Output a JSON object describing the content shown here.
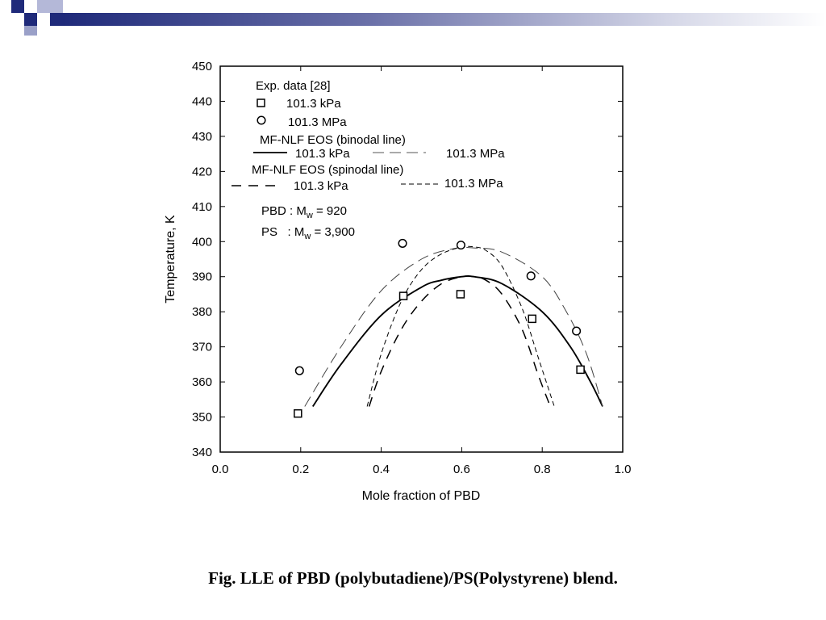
{
  "slide": {
    "caption": "Fig. LLE of PBD (polybutadiene)/PS(Polystyrene) blend.",
    "accent_color": "#1f2a7a"
  },
  "chart_data": {
    "type": "scatter",
    "xlabel": "Mole fraction of PBD",
    "ylabel": "Temperature, K",
    "xlim": [
      0.0,
      1.0
    ],
    "ylim": [
      340,
      450
    ],
    "x_ticks": [
      "0.0",
      "0.2",
      "0.4",
      "0.6",
      "0.8",
      "1.0"
    ],
    "y_ticks": [
      "340",
      "350",
      "360",
      "370",
      "380",
      "390",
      "400",
      "410",
      "420",
      "430",
      "440",
      "450"
    ],
    "grid": false,
    "legend": {
      "exp_title": "Exp. data [28]",
      "exp_kpa": "101.3 kPa",
      "exp_mpa": "101.3 MPa",
      "binodal_title": "MF-NLF EOS (binodal line)",
      "binodal_kpa": "101.3 kPa",
      "binodal_mpa": "101.3 MPa",
      "spinodal_title": "MF-NLF EOS (spinodal line)",
      "spinodal_kpa": "101.3 kPa",
      "spinodal_mpa": "101.3 MPa"
    },
    "annotations": {
      "pbd_prefix": "PBD : M",
      "pbd_sub": "w",
      "pbd_value": " = 920",
      "ps_prefix": "PS   : M",
      "ps_sub": "w",
      "ps_value": " = 3,900"
    },
    "series": [
      {
        "name": "101.3 kPa",
        "kind": "points",
        "marker": "square",
        "x": [
          0.193,
          0.455,
          0.597,
          0.775,
          0.895
        ],
        "y": [
          351,
          384.5,
          385,
          378,
          363.5
        ]
      },
      {
        "name": "101.3 MPa",
        "kind": "points",
        "marker": "circle",
        "x": [
          0.197,
          0.453,
          0.598,
          0.772,
          0.885
        ],
        "y": [
          363.2,
          399.5,
          399,
          390.2,
          374.5
        ]
      },
      {
        "name": "101.3 kPa",
        "kind": "line",
        "style": "binodal-solid",
        "x": [
          0.23,
          0.3,
          0.4,
          0.5,
          0.55,
          0.6,
          0.63,
          0.7,
          0.8,
          0.87,
          0.92,
          0.95
        ],
        "y": [
          353,
          365,
          379,
          387,
          389,
          390,
          390,
          388,
          380,
          370,
          360,
          353
        ]
      },
      {
        "name": "101.3 MPa",
        "kind": "line",
        "style": "binodal-long-dash",
        "x": [
          0.21,
          0.3,
          0.4,
          0.5,
          0.58,
          0.63,
          0.7,
          0.8,
          0.86,
          0.91,
          0.95
        ],
        "y": [
          353,
          370,
          386,
          395,
          398,
          398.2,
          397,
          390,
          380,
          368,
          353
        ]
      },
      {
        "name": "101.3 kPa",
        "kind": "line",
        "style": "spinodal-dash",
        "x": [
          0.37,
          0.4,
          0.45,
          0.5,
          0.55,
          0.6,
          0.63,
          0.66,
          0.7,
          0.75,
          0.79,
          0.82
        ],
        "y": [
          353,
          363,
          375,
          383,
          388,
          390,
          390,
          389,
          385,
          375,
          362,
          353
        ]
      },
      {
        "name": "101.3 MPa",
        "kind": "line",
        "style": "spinodal-short-dash",
        "x": [
          0.365,
          0.4,
          0.45,
          0.5,
          0.55,
          0.6,
          0.63,
          0.66,
          0.7,
          0.75,
          0.79,
          0.83
        ],
        "y": [
          353,
          368,
          383,
          392,
          396.5,
          398.4,
          398.5,
          397.5,
          393,
          381,
          367,
          353
        ]
      }
    ]
  }
}
